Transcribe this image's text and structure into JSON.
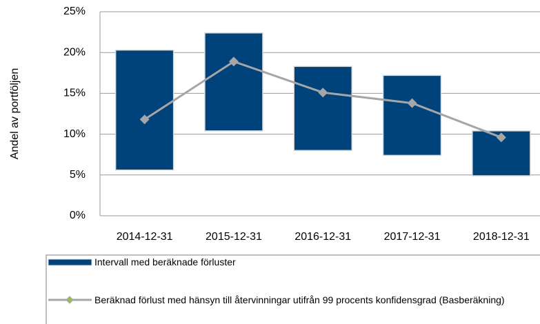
{
  "chart_data": {
    "type": "range-bar-line",
    "ylabel": "Andel av portföljen",
    "categories": [
      "2014-12-31",
      "2015-12-31",
      "2016-12-31",
      "2017-12-31",
      "2018-12-31"
    ],
    "series": [
      {
        "name": "Intervall med beräknade förluster",
        "type": "range",
        "color": "#00427a",
        "low": [
          5.6,
          10.4,
          8.0,
          7.4,
          4.9
        ],
        "high": [
          20.3,
          22.4,
          18.3,
          17.2,
          10.4
        ]
      },
      {
        "name": "Beräknad förlust med hänsyn till återvinningar utifrån 99 procents konfidensgrad (Basberäkning)",
        "type": "line",
        "color": "#a6a6a6",
        "values": [
          11.8,
          18.9,
          15.1,
          13.8,
          9.6
        ]
      }
    ],
    "ylim": [
      0,
      25
    ],
    "yticks": [
      {
        "value": 0,
        "label": "0%"
      },
      {
        "value": 5,
        "label": "5%"
      },
      {
        "value": 10,
        "label": "10%"
      },
      {
        "value": 15,
        "label": "15%"
      },
      {
        "value": 20,
        "label": "20%"
      },
      {
        "value": 25,
        "label": "25%"
      }
    ],
    "grid": true
  }
}
